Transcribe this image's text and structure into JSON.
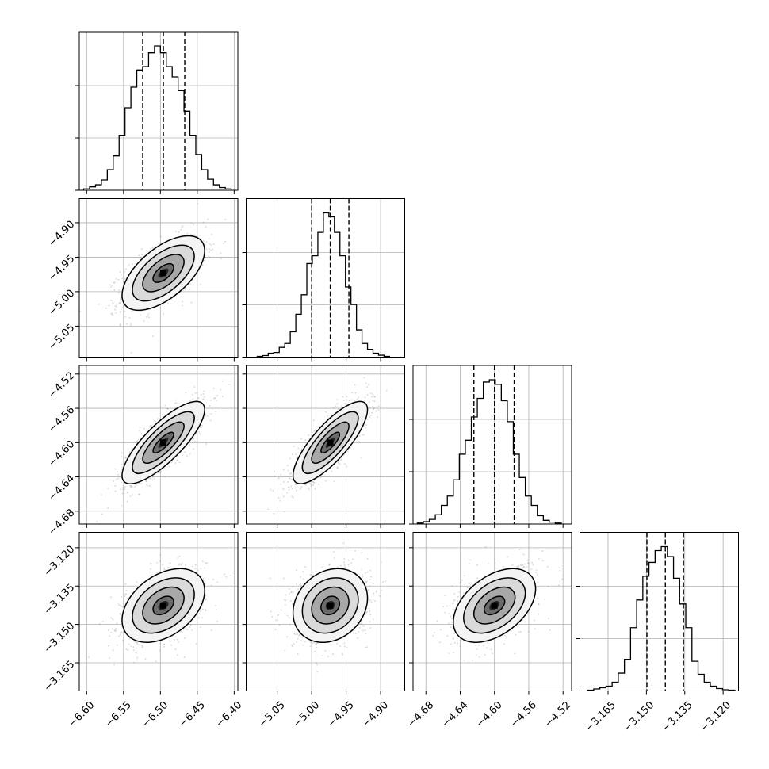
{
  "figure": {
    "type": "corner_plot",
    "colors": {
      "ink": "#000000",
      "grid": "#b0b0b0",
      "scatter": "#9a9a9a"
    }
  },
  "params": [
    {
      "id": "p1",
      "xlim": [
        -6.61,
        -6.395
      ],
      "ticks": [
        -6.6,
        -6.55,
        -6.5,
        -6.45,
        -6.4
      ],
      "tick_labels": [
        "−6.60",
        "−6.55",
        "−6.50",
        "−6.45",
        "−6.40"
      ],
      "median": -6.496,
      "q16": -6.524,
      "q84": -6.467,
      "sigma": 0.028
    },
    {
      "id": "p2",
      "xlim": [
        -5.095,
        -4.865
      ],
      "ticks": [
        -5.05,
        -5.0,
        -4.95,
        -4.9
      ],
      "tick_labels": [
        "−5.05",
        "−5.00",
        "−4.95",
        "−4.90"
      ],
      "median": -4.973,
      "q16": -5.0,
      "q84": -4.946,
      "sigma": 0.027
    },
    {
      "id": "p3",
      "xlim": [
        -4.695,
        -4.51
      ],
      "ticks": [
        -4.68,
        -4.64,
        -4.6,
        -4.56,
        -4.52
      ],
      "tick_labels": [
        "−4.68",
        "−4.64",
        "−4.60",
        "−4.56",
        "−4.52"
      ],
      "median": -4.6,
      "q16": -4.624,
      "q84": -4.577,
      "sigma": 0.024
    },
    {
      "id": "p4",
      "xlim": [
        -3.176,
        -3.114
      ],
      "ticks": [
        -3.165,
        -3.15,
        -3.135,
        -3.12
      ],
      "tick_labels": [
        "−3.165",
        "−3.150",
        "−3.135",
        "−3.120"
      ],
      "median": -3.1426,
      "q16": -3.1498,
      "q84": -3.1355,
      "sigma": 0.0072
    }
  ],
  "chart_data": [
    {
      "type": "histogram",
      "param": 0,
      "bin_edges": [
        -6.604,
        -6.596,
        -6.588,
        -6.58,
        -6.572,
        -6.564,
        -6.556,
        -6.548,
        -6.54,
        -6.532,
        -6.524,
        -6.516,
        -6.508,
        -6.5,
        -6.492,
        -6.484,
        -6.476,
        -6.468,
        -6.46,
        -6.452,
        -6.444,
        -6.436,
        -6.428,
        -6.42,
        -6.412,
        -6.404
      ],
      "counts": [
        2,
        5,
        8,
        15,
        30,
        50,
        80,
        120,
        150,
        175,
        180,
        200,
        210,
        200,
        180,
        165,
        145,
        115,
        80,
        52,
        30,
        16,
        8,
        4,
        2
      ]
    },
    {
      "type": "histogram",
      "param": 1,
      "bin_edges": [
        -5.079,
        -5.071,
        -5.063,
        -5.055,
        -5.047,
        -5.039,
        -5.031,
        -5.023,
        -5.015,
        -5.007,
        -4.999,
        -4.991,
        -4.983,
        -4.975,
        -4.967,
        -4.959,
        -4.951,
        -4.943,
        -4.935,
        -4.927,
        -4.919,
        -4.911,
        -4.903,
        -4.895,
        -4.887
      ],
      "counts": [
        2,
        4,
        10,
        12,
        25,
        35,
        65,
        110,
        160,
        240,
        260,
        320,
        370,
        360,
        320,
        260,
        180,
        135,
        70,
        35,
        20,
        10,
        5,
        2
      ]
    },
    {
      "type": "histogram",
      "param": 2,
      "bin_edges": [
        -4.69,
        -4.683,
        -4.676,
        -4.669,
        -4.662,
        -4.655,
        -4.648,
        -4.641,
        -4.634,
        -4.627,
        -4.62,
        -4.613,
        -4.606,
        -4.599,
        -4.592,
        -4.585,
        -4.578,
        -4.571,
        -4.564,
        -4.557,
        -4.55,
        -4.543,
        -4.536,
        -4.529,
        -4.522
      ],
      "counts": [
        2,
        5,
        10,
        20,
        40,
        60,
        95,
        150,
        180,
        230,
        270,
        305,
        310,
        300,
        265,
        220,
        150,
        100,
        60,
        40,
        18,
        8,
        4,
        2
      ]
    },
    {
      "type": "histogram",
      "param": 3,
      "bin_edges": [
        -3.173,
        -3.1706,
        -3.1682,
        -3.1658,
        -3.1634,
        -3.161,
        -3.1586,
        -3.1562,
        -3.1538,
        -3.1514,
        -3.149,
        -3.1466,
        -3.1442,
        -3.1418,
        -3.1394,
        -3.137,
        -3.1346,
        -3.1322,
        -3.1298,
        -3.1274,
        -3.125,
        -3.1226,
        -3.1202,
        -3.1178,
        -3.1154
      ],
      "counts": [
        2,
        5,
        8,
        12,
        22,
        45,
        80,
        160,
        230,
        290,
        325,
        355,
        365,
        340,
        285,
        220,
        160,
        75,
        42,
        22,
        12,
        6,
        3,
        2
      ]
    },
    {
      "type": "contour_2d",
      "x_param": 0,
      "y_param": 1,
      "correlation": 0.6
    },
    {
      "type": "contour_2d",
      "x_param": 0,
      "y_param": 2,
      "correlation": 0.8
    },
    {
      "type": "contour_2d",
      "x_param": 1,
      "y_param": 2,
      "correlation": 0.8
    },
    {
      "type": "contour_2d",
      "x_param": 0,
      "y_param": 3,
      "correlation": 0.4
    },
    {
      "type": "contour_2d",
      "x_param": 1,
      "y_param": 3,
      "correlation": 0.2
    },
    {
      "type": "contour_2d",
      "x_param": 2,
      "y_param": 3,
      "correlation": 0.45
    }
  ]
}
